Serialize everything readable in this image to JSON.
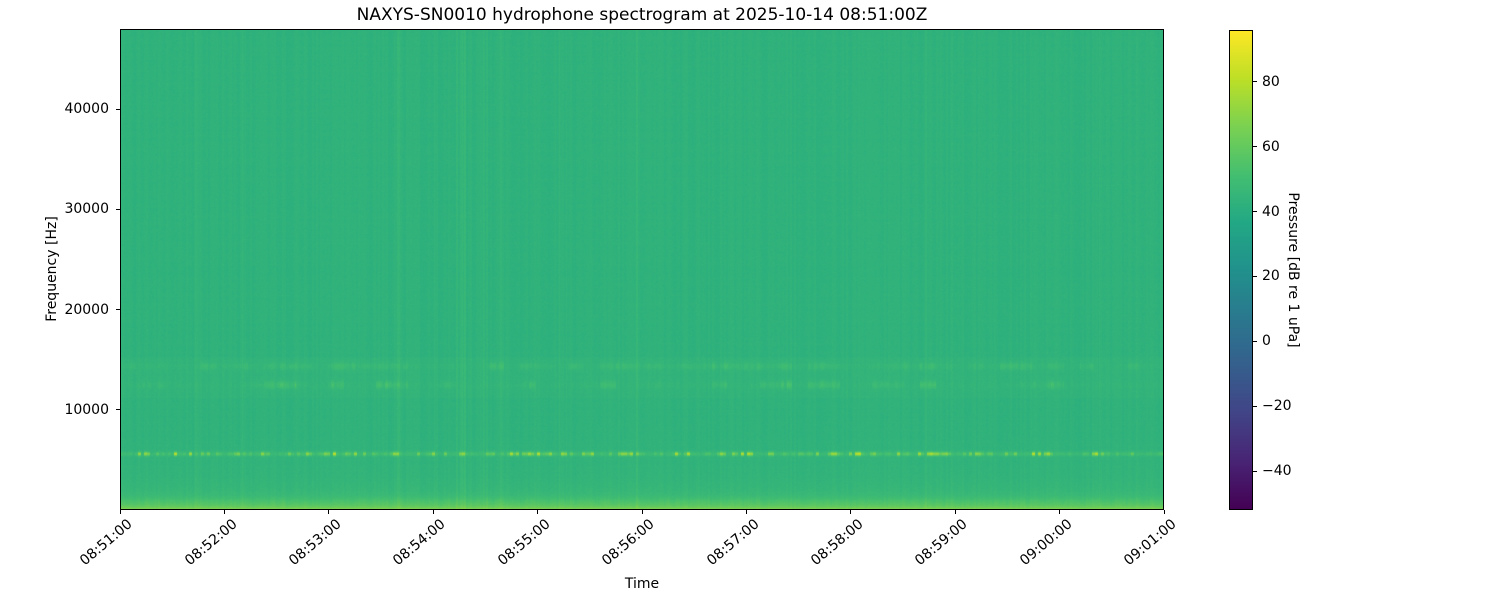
{
  "chart_data": {
    "type": "heatmap",
    "subtype": "spectrogram",
    "title": "NAXYS-SN0010 hydrophone spectrogram at 2025-10-14 08:51:00Z",
    "xlabel": "Time",
    "ylabel": "Frequency [Hz]",
    "x_tick_labels": [
      "08:51:00",
      "08:52:00",
      "08:53:00",
      "08:54:00",
      "08:55:00",
      "08:56:00",
      "08:57:00",
      "08:58:00",
      "08:59:00",
      "09:00:00",
      "09:01:00"
    ],
    "x_tick_rotation_deg": 40,
    "time_span_seconds": 600,
    "y_tick_values": [
      10000,
      20000,
      30000,
      40000
    ],
    "y_tick_labels": [
      "10000",
      "20000",
      "30000",
      "40000"
    ],
    "ylim": [
      0,
      48000
    ],
    "grid": false,
    "colorbar": {
      "label": "Pressure [dB re 1 uPa]",
      "tick_values": [
        80,
        60,
        40,
        20,
        0,
        -20,
        -40
      ],
      "tick_labels": [
        "80",
        "60",
        "40",
        "20",
        "0",
        "−20",
        "−40"
      ],
      "vmin": -52,
      "vmax": 96,
      "colormap": "viridis",
      "stops": [
        "#440154",
        "#482475",
        "#414487",
        "#355f8d",
        "#2a788e",
        "#21918c",
        "#22a884",
        "#44bf70",
        "#7ad151",
        "#bddf26",
        "#fde725"
      ],
      "position": "right"
    },
    "background_level_db": 43,
    "noise_seed": 20251014,
    "features": [
      {
        "name": "tonal-band",
        "center_hz": 5600,
        "sigma_hz": 130,
        "peak_boost_db": 30,
        "pattern": "dashed-strong"
      },
      {
        "name": "tonal-band",
        "center_hz": 12500,
        "sigma_hz": 270,
        "peak_boost_db": 12,
        "pattern": "dashed-bursts"
      },
      {
        "name": "tonal-band",
        "center_hz": 14350,
        "sigma_hz": 270,
        "peak_boost_db": 12,
        "pattern": "dashed-bursts"
      },
      {
        "name": "band-zone-lift",
        "from_hz": 11200,
        "to_hz": 15300,
        "boost_db": 0.9
      },
      {
        "name": "low-frequency-noise",
        "decay_scale_hz": 520,
        "peak_boost_db": 28,
        "pattern": "continuous-bottom-strip"
      },
      {
        "name": "vertical-striping",
        "amplitude_db": 1.5,
        "pattern": "columns"
      }
    ]
  }
}
